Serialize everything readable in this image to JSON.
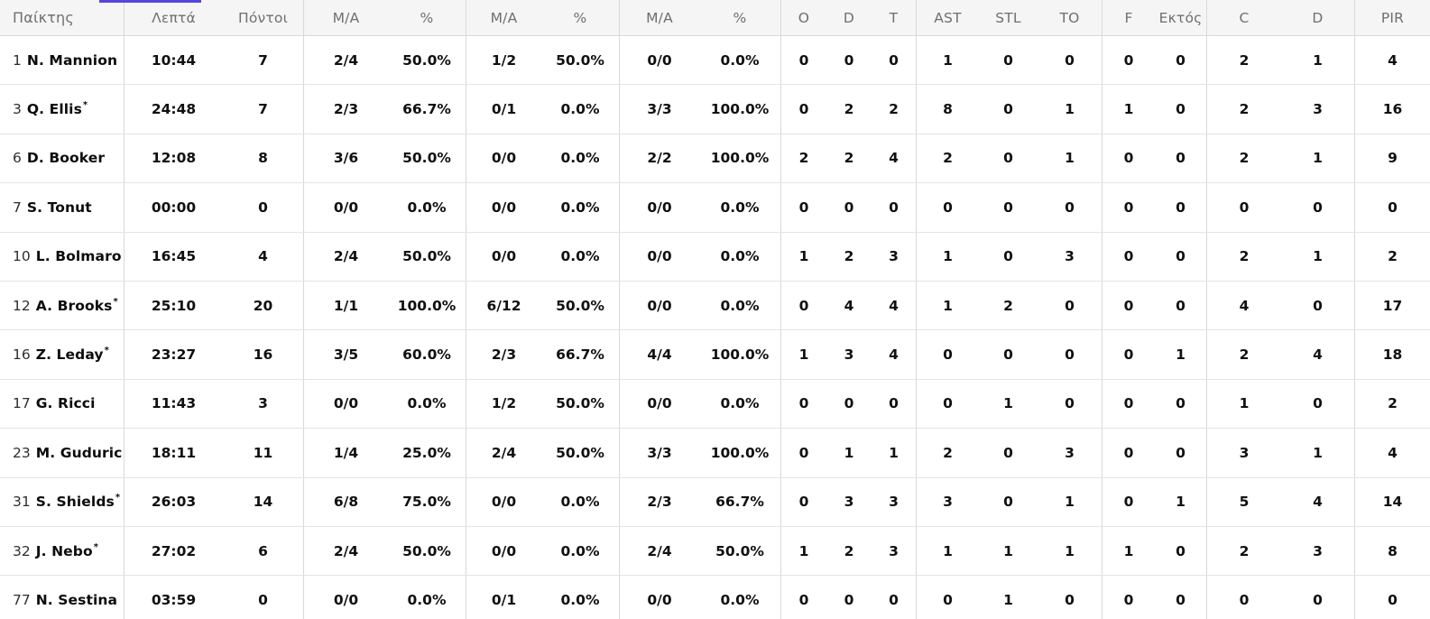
{
  "colors": {
    "accent": "#5646dd",
    "header_bg": "#f5f5f5",
    "header_text": "#6f6f6f",
    "stat_text": "#101010"
  },
  "table": {
    "header": {
      "player": "Παίκτης",
      "min": "Λεπτά",
      "pts": "Πόντοι",
      "p2": "Μ/Α",
      "p2pct": "%",
      "p3": "Μ/Α",
      "p3pct": "%",
      "ft": "Μ/Α",
      "ftpct": "%",
      "ro": "O",
      "rd": "D",
      "rt": "T",
      "ast": "AST",
      "stl": "STL",
      "to": "TO",
      "f": "F",
      "ektos": "Εκτός",
      "c": "C",
      "d": "D",
      "pir": "PIR"
    },
    "starter_mark": "*",
    "rows": [
      {
        "num": "1",
        "name": "N. Mannion",
        "starter": false,
        "min": "10:44",
        "pts": "7",
        "p2": "2/4",
        "p2pct": "50.0%",
        "p3": "1/2",
        "p3pct": "50.0%",
        "ft": "0/0",
        "ftpct": "0.0%",
        "ro": "0",
        "rd": "0",
        "rt": "0",
        "ast": "1",
        "stl": "0",
        "to": "0",
        "f": "0",
        "ektos": "0",
        "c": "2",
        "d": "1",
        "pir": "4"
      },
      {
        "num": "3",
        "name": "Q. Ellis",
        "starter": true,
        "min": "24:48",
        "pts": "7",
        "p2": "2/3",
        "p2pct": "66.7%",
        "p3": "0/1",
        "p3pct": "0.0%",
        "ft": "3/3",
        "ftpct": "100.0%",
        "ro": "0",
        "rd": "2",
        "rt": "2",
        "ast": "8",
        "stl": "0",
        "to": "1",
        "f": "1",
        "ektos": "0",
        "c": "2",
        "d": "3",
        "pir": "16"
      },
      {
        "num": "6",
        "name": "D. Booker",
        "starter": false,
        "min": "12:08",
        "pts": "8",
        "p2": "3/6",
        "p2pct": "50.0%",
        "p3": "0/0",
        "p3pct": "0.0%",
        "ft": "2/2",
        "ftpct": "100.0%",
        "ro": "2",
        "rd": "2",
        "rt": "4",
        "ast": "2",
        "stl": "0",
        "to": "1",
        "f": "0",
        "ektos": "0",
        "c": "2",
        "d": "1",
        "pir": "9"
      },
      {
        "num": "7",
        "name": "S. Tonut",
        "starter": false,
        "min": "00:00",
        "pts": "0",
        "p2": "0/0",
        "p2pct": "0.0%",
        "p3": "0/0",
        "p3pct": "0.0%",
        "ft": "0/0",
        "ftpct": "0.0%",
        "ro": "0",
        "rd": "0",
        "rt": "0",
        "ast": "0",
        "stl": "0",
        "to": "0",
        "f": "0",
        "ektos": "0",
        "c": "0",
        "d": "0",
        "pir": "0"
      },
      {
        "num": "10",
        "name": "L. Bolmaro",
        "starter": false,
        "min": "16:45",
        "pts": "4",
        "p2": "2/4",
        "p2pct": "50.0%",
        "p3": "0/0",
        "p3pct": "0.0%",
        "ft": "0/0",
        "ftpct": "0.0%",
        "ro": "1",
        "rd": "2",
        "rt": "3",
        "ast": "1",
        "stl": "0",
        "to": "3",
        "f": "0",
        "ektos": "0",
        "c": "2",
        "d": "1",
        "pir": "2"
      },
      {
        "num": "12",
        "name": "A. Brooks",
        "starter": true,
        "min": "25:10",
        "pts": "20",
        "p2": "1/1",
        "p2pct": "100.0%",
        "p3": "6/12",
        "p3pct": "50.0%",
        "ft": "0/0",
        "ftpct": "0.0%",
        "ro": "0",
        "rd": "4",
        "rt": "4",
        "ast": "1",
        "stl": "2",
        "to": "0",
        "f": "0",
        "ektos": "0",
        "c": "4",
        "d": "0",
        "pir": "17"
      },
      {
        "num": "16",
        "name": "Z. Leday",
        "starter": true,
        "min": "23:27",
        "pts": "16",
        "p2": "3/5",
        "p2pct": "60.0%",
        "p3": "2/3",
        "p3pct": "66.7%",
        "ft": "4/4",
        "ftpct": "100.0%",
        "ro": "1",
        "rd": "3",
        "rt": "4",
        "ast": "0",
        "stl": "0",
        "to": "0",
        "f": "0",
        "ektos": "1",
        "c": "2",
        "d": "4",
        "pir": "18"
      },
      {
        "num": "17",
        "name": "G. Ricci",
        "starter": false,
        "min": "11:43",
        "pts": "3",
        "p2": "0/0",
        "p2pct": "0.0%",
        "p3": "1/2",
        "p3pct": "50.0%",
        "ft": "0/0",
        "ftpct": "0.0%",
        "ro": "0",
        "rd": "0",
        "rt": "0",
        "ast": "0",
        "stl": "1",
        "to": "0",
        "f": "0",
        "ektos": "0",
        "c": "1",
        "d": "0",
        "pir": "2"
      },
      {
        "num": "23",
        "name": "M. Guduric",
        "starter": false,
        "min": "18:11",
        "pts": "11",
        "p2": "1/4",
        "p2pct": "25.0%",
        "p3": "2/4",
        "p3pct": "50.0%",
        "ft": "3/3",
        "ftpct": "100.0%",
        "ro": "0",
        "rd": "1",
        "rt": "1",
        "ast": "2",
        "stl": "0",
        "to": "3",
        "f": "0",
        "ektos": "0",
        "c": "3",
        "d": "1",
        "pir": "4"
      },
      {
        "num": "31",
        "name": "S. Shields",
        "starter": true,
        "min": "26:03",
        "pts": "14",
        "p2": "6/8",
        "p2pct": "75.0%",
        "p3": "0/0",
        "p3pct": "0.0%",
        "ft": "2/3",
        "ftpct": "66.7%",
        "ro": "0",
        "rd": "3",
        "rt": "3",
        "ast": "3",
        "stl": "0",
        "to": "1",
        "f": "0",
        "ektos": "1",
        "c": "5",
        "d": "4",
        "pir": "14"
      },
      {
        "num": "32",
        "name": "J. Nebo",
        "starter": true,
        "min": "27:02",
        "pts": "6",
        "p2": "2/4",
        "p2pct": "50.0%",
        "p3": "0/0",
        "p3pct": "0.0%",
        "ft": "2/4",
        "ftpct": "50.0%",
        "ro": "1",
        "rd": "2",
        "rt": "3",
        "ast": "1",
        "stl": "1",
        "to": "1",
        "f": "1",
        "ektos": "0",
        "c": "2",
        "d": "3",
        "pir": "8"
      },
      {
        "num": "77",
        "name": "N. Sestina",
        "starter": false,
        "min": "03:59",
        "pts": "0",
        "p2": "0/0",
        "p2pct": "0.0%",
        "p3": "0/1",
        "p3pct": "0.0%",
        "ft": "0/0",
        "ftpct": "0.0%",
        "ro": "0",
        "rd": "0",
        "rt": "0",
        "ast": "0",
        "stl": "1",
        "to": "0",
        "f": "0",
        "ektos": "0",
        "c": "0",
        "d": "0",
        "pir": "0"
      }
    ]
  }
}
